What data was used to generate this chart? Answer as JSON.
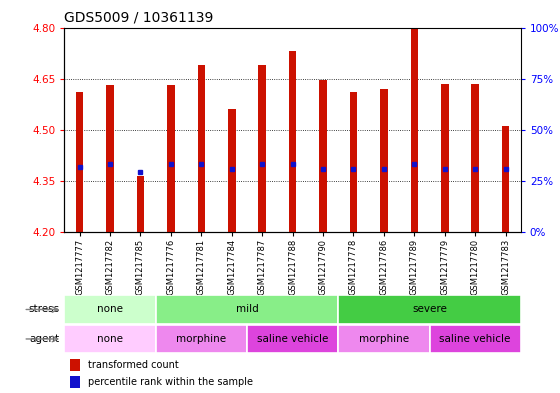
{
  "title": "GDS5009 / 10361139",
  "samples": [
    "GSM1217777",
    "GSM1217782",
    "GSM1217785",
    "GSM1217776",
    "GSM1217781",
    "GSM1217784",
    "GSM1217787",
    "GSM1217788",
    "GSM1217790",
    "GSM1217778",
    "GSM1217786",
    "GSM1217789",
    "GSM1217779",
    "GSM1217780",
    "GSM1217783"
  ],
  "bar_tops": [
    4.61,
    4.63,
    4.365,
    4.63,
    4.69,
    4.56,
    4.69,
    4.73,
    4.645,
    4.61,
    4.62,
    4.8,
    4.635,
    4.635,
    4.51
  ],
  "bar_bottom": 4.2,
  "blue_positions": [
    4.39,
    4.4,
    4.375,
    4.4,
    4.4,
    4.385,
    4.4,
    4.4,
    4.385,
    4.385,
    4.385,
    4.4,
    4.385,
    4.385,
    4.385
  ],
  "ylim_left": [
    4.2,
    4.8
  ],
  "yticks_left": [
    4.2,
    4.35,
    4.5,
    4.65,
    4.8
  ],
  "ylim_right": [
    0,
    100
  ],
  "yticks_right": [
    0,
    25,
    50,
    75,
    100
  ],
  "ytick_labels_right": [
    "0%",
    "25%",
    "50%",
    "75%",
    "100%"
  ],
  "bar_color": "#cc1100",
  "blue_color": "#1111cc",
  "background_color": "#ffffff",
  "stress_groups": [
    {
      "label": "none",
      "start": 0,
      "end": 3,
      "color": "#ccffcc"
    },
    {
      "label": "mild",
      "start": 3,
      "end": 9,
      "color": "#88ee88"
    },
    {
      "label": "severe",
      "start": 9,
      "end": 15,
      "color": "#44cc44"
    }
  ],
  "agent_groups": [
    {
      "label": "none",
      "start": 0,
      "end": 3,
      "color": "#ffccff"
    },
    {
      "label": "morphine",
      "start": 3,
      "end": 6,
      "color": "#ee88ee"
    },
    {
      "label": "saline vehicle",
      "start": 6,
      "end": 9,
      "color": "#dd44dd"
    },
    {
      "label": "morphine",
      "start": 9,
      "end": 12,
      "color": "#ee88ee"
    },
    {
      "label": "saline vehicle",
      "start": 12,
      "end": 15,
      "color": "#dd44dd"
    }
  ],
  "legend_items": [
    {
      "label": "transformed count",
      "color": "#cc1100"
    },
    {
      "label": "percentile rank within the sample",
      "color": "#1111cc"
    }
  ],
  "title_fontsize": 10,
  "tick_fontsize": 7.5,
  "annot_fontsize": 7.5
}
